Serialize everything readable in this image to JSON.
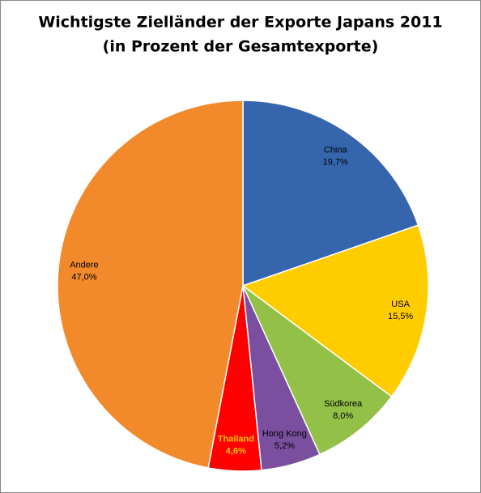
{
  "chart_data": {
    "type": "pie",
    "title": "Wichtigste Zielländer der Exporte Japans 2011",
    "subtitle": "(in Prozent der Gesamtexporte)",
    "categories": [
      "China",
      "USA",
      "Südkorea",
      "Hong Kong",
      "Thailand",
      "Andere"
    ],
    "values": [
      19.7,
      15.5,
      8.0,
      5.2,
      4.6,
      47.0
    ],
    "value_labels": [
      "19,7%",
      "15,5%",
      "8,0%",
      "5,2%",
      "4,6%",
      "47,0%"
    ],
    "colors": [
      "#3566ad",
      "#ffcc00",
      "#93c047",
      "#7a4f9f",
      "#ff0000",
      "#f28a2c"
    ],
    "label_colors": [
      "#000000",
      "#000000",
      "#000000",
      "#000000",
      "#ffc000",
      "#000000"
    ]
  }
}
